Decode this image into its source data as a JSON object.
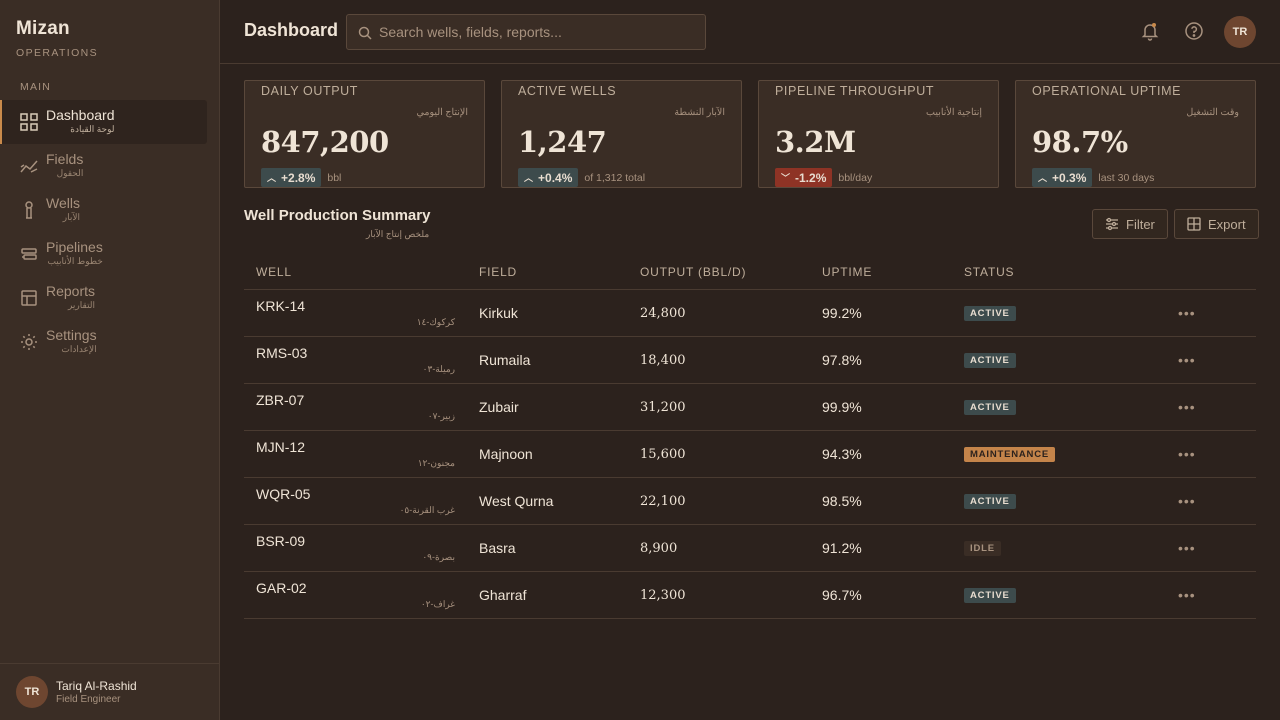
{
  "brand": {
    "name": "Mizan",
    "sub": "OPERATIONS"
  },
  "nav": {
    "section": "MAIN",
    "items": [
      {
        "label": "Dashboard",
        "ar": "لوحة القيادة",
        "icon": "dashboard-icon",
        "active": true
      },
      {
        "label": "Fields",
        "ar": "الحقول",
        "icon": "fields-icon"
      },
      {
        "label": "Wells",
        "ar": "الآبار",
        "icon": "wells-icon"
      },
      {
        "label": "Pipelines",
        "ar": "خطوط الأنابيب",
        "icon": "pipelines-icon"
      },
      {
        "label": "Reports",
        "ar": "التقارير",
        "icon": "reports-icon"
      },
      {
        "label": "Settings",
        "ar": "الإعدادات",
        "icon": "settings-icon"
      }
    ]
  },
  "user": {
    "initials": "TR",
    "name": "Tariq Al-Rashid",
    "role": "Field Engineer"
  },
  "header": {
    "title": "Dashboard",
    "search_placeholder": "Search wells, fields, reports..."
  },
  "kpis": [
    {
      "label": "DAILY OUTPUT",
      "ar": "الإنتاج اليومي",
      "value": "847,200",
      "trend": "+2.8%",
      "trend_dir": "up",
      "note": "bbl"
    },
    {
      "label": "ACTIVE WELLS",
      "ar": "الآبار النشطة",
      "value": "1,247",
      "trend": "+0.4%",
      "trend_dir": "up",
      "note": "of 1,312 total"
    },
    {
      "label": "PIPELINE THROUGHPUT",
      "ar": "إنتاجية الأنابيب",
      "value": "3.2M",
      "trend": "-1.2%",
      "trend_dir": "down",
      "note": "bbl/day"
    },
    {
      "label": "OPERATIONAL UPTIME",
      "ar": "وقت التشغيل",
      "value": "98.7%",
      "trend": "+0.3%",
      "trend_dir": "up",
      "note": "last 30 days"
    }
  ],
  "table": {
    "title": "Well Production Summary",
    "title_ar": "ملخص إنتاج الآبار",
    "filter_label": "Filter",
    "export_label": "Export",
    "columns": [
      "WELL",
      "FIELD",
      "OUTPUT (BBL/D)",
      "UPTIME",
      "STATUS"
    ],
    "rows": [
      {
        "well": "KRK-14",
        "well_ar": "كركوك-١٤",
        "field": "Kirkuk",
        "output": "24,800",
        "uptime": "99.2%",
        "status": "ACTIVE"
      },
      {
        "well": "RMS-03",
        "well_ar": "رميلة-٠٣",
        "field": "Rumaila",
        "output": "18,400",
        "uptime": "97.8%",
        "status": "ACTIVE"
      },
      {
        "well": "ZBR-07",
        "well_ar": "زبير-٠٧",
        "field": "Zubair",
        "output": "31,200",
        "uptime": "99.9%",
        "status": "ACTIVE"
      },
      {
        "well": "MJN-12",
        "well_ar": "مجنون-١٢",
        "field": "Majnoon",
        "output": "15,600",
        "uptime": "94.3%",
        "status": "MAINTENANCE"
      },
      {
        "well": "WQR-05",
        "well_ar": "غرب القرنة-٠٥",
        "field": "West Qurna",
        "output": "22,100",
        "uptime": "98.5%",
        "status": "ACTIVE"
      },
      {
        "well": "BSR-09",
        "well_ar": "بصرة-٠٩",
        "field": "Basra",
        "output": "8,900",
        "uptime": "91.2%",
        "status": "IDLE"
      },
      {
        "well": "GAR-02",
        "well_ar": "غراف-٠٢",
        "field": "Gharraf",
        "output": "12,300",
        "uptime": "96.7%",
        "status": "ACTIVE"
      }
    ]
  },
  "colors": {
    "accent": "#c98a4b",
    "background": "#2c221d",
    "panel": "#3a2d25",
    "active_badge": "#3d4b4c",
    "down_badge": "#8e3325"
  }
}
